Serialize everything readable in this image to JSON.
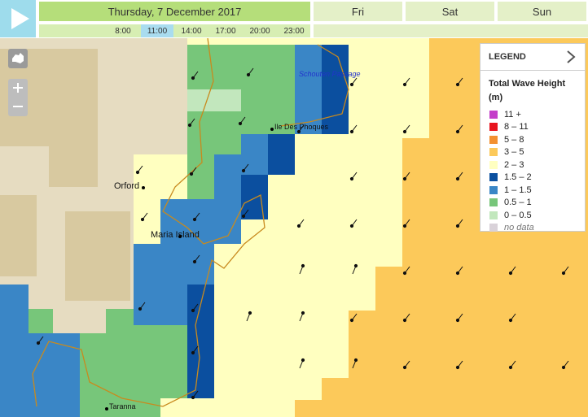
{
  "header": {
    "date": "Thursday, 7 December 2017",
    "times": [
      "8:00",
      "11:00",
      "14:00",
      "17:00",
      "20:00",
      "23:00"
    ],
    "selected_time": 1,
    "days": [
      "Fri",
      "Sat",
      "Sun"
    ]
  },
  "map": {
    "places": [
      {
        "label": "Schouten Passage",
        "style": "water"
      },
      {
        "label": "Ile Des Phoques",
        "style": "small"
      },
      {
        "label": "Orford",
        "style": "town"
      },
      {
        "label": "Maria Island",
        "style": "town"
      },
      {
        "label": "Taranna",
        "style": "small"
      }
    ]
  },
  "legend": {
    "header": "LEGEND",
    "title": "Total Wave Height (m)",
    "items": [
      {
        "label": "11 +",
        "color": "#c43fc9"
      },
      {
        "label": "8 – 11",
        "color": "#e8141e"
      },
      {
        "label": "5 – 8",
        "color": "#f39030"
      },
      {
        "label": "3 – 5",
        "color": "#fcc95a"
      },
      {
        "label": "2 – 3",
        "color": "#ffffc0"
      },
      {
        "label": "1.5 – 2",
        "color": "#0b4f9f"
      },
      {
        "label": "1 – 1.5",
        "color": "#3a86c6"
      },
      {
        "label": "0.5 – 1",
        "color": "#77c67a"
      },
      {
        "label": "0 – 0.5",
        "color": "#c2e7bd"
      },
      {
        "label": "no data",
        "color": "#d9d2d9"
      }
    ]
  }
}
